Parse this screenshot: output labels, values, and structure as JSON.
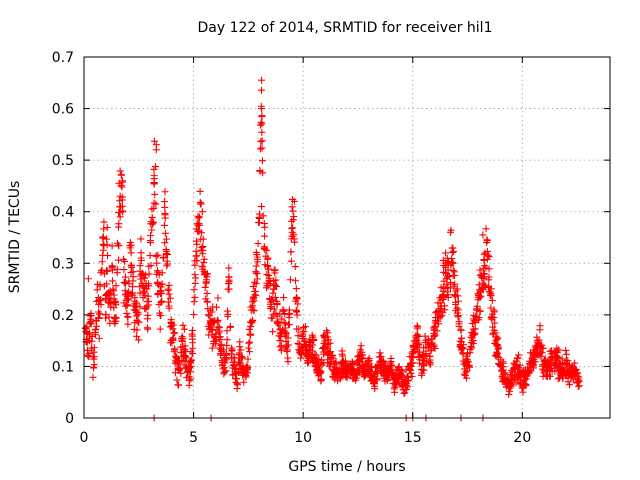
{
  "chart_data": {
    "type": "scatter",
    "title": "Day 122 of 2014, SRMTID for receiver hil1",
    "xlabel": "GPS time / hours",
    "ylabel": "SRMTID / TECUs",
    "xlim": [
      0,
      24
    ],
    "ylim": [
      0,
      0.7
    ],
    "x_ticks": [
      0,
      5,
      10,
      15,
      20
    ],
    "x_tick_labels": [
      "0",
      "5",
      "10",
      "15",
      "20"
    ],
    "y_ticks": [
      0,
      0.1,
      0.2,
      0.3,
      0.4,
      0.5,
      0.6,
      0.7
    ],
    "y_tick_labels": [
      "0",
      "0.1",
      "0.2",
      "0.3",
      "0.4",
      "0.5",
      "0.6",
      "0.7"
    ],
    "grid": true,
    "marker": "+",
    "color": "#ff0000",
    "series": [
      {
        "name": "SRMTID",
        "x": [
          0.05,
          0.1,
          0.2,
          0.3,
          0.4,
          0.5,
          0.6,
          0.7,
          0.8,
          0.9,
          1.0,
          1.05,
          1.1,
          1.2,
          1.3,
          1.4,
          1.5,
          1.6,
          1.7,
          1.75,
          1.8,
          1.9,
          2.0,
          2.1,
          2.2,
          2.3,
          2.4,
          2.5,
          2.6,
          2.7,
          2.8,
          2.9,
          3.0,
          3.1,
          3.2,
          3.25,
          3.3,
          3.4,
          3.5,
          3.6,
          3.7,
          3.8,
          3.9,
          4.0,
          4.1,
          4.2,
          4.3,
          4.4,
          4.5,
          4.6,
          4.7,
          4.8,
          4.9,
          5.0,
          5.1,
          5.2,
          5.3,
          5.4,
          5.5,
          5.6,
          5.7,
          5.8,
          5.9,
          6.0,
          6.1,
          6.2,
          6.3,
          6.4,
          6.5,
          6.6,
          6.7,
          6.8,
          6.9,
          7.0,
          7.1,
          7.2,
          7.3,
          7.4,
          7.5,
          7.6,
          7.7,
          7.8,
          7.9,
          8.0,
          8.05,
          8.1,
          8.2,
          8.3,
          8.4,
          8.5,
          8.6,
          8.7,
          8.8,
          8.9,
          9.0,
          9.1,
          9.2,
          9.3,
          9.4,
          9.5,
          9.6,
          9.7,
          9.8,
          9.9,
          10.0,
          10.2,
          10.4,
          10.6,
          10.8,
          11.0,
          11.2,
          11.4,
          11.6,
          11.8,
          12.0,
          12.2,
          12.4,
          12.6,
          12.8,
          13.0,
          13.2,
          13.4,
          13.6,
          13.8,
          14.0,
          14.2,
          14.4,
          14.6,
          14.8,
          15.0,
          15.2,
          15.4,
          15.6,
          15.8,
          16.0,
          16.2,
          16.4,
          16.6,
          16.8,
          17.0,
          17.2,
          17.4,
          17.6,
          17.8,
          18.0,
          18.2,
          18.4,
          18.6,
          18.8,
          19.0,
          19.2,
          19.4,
          19.6,
          19.8,
          20.0,
          20.2,
          20.4,
          20.6,
          20.8,
          21.0,
          21.2,
          21.4,
          21.6,
          21.8,
          22.0,
          22.2,
          22.4,
          22.6
        ],
        "y": [
          0.14,
          0.17,
          0.12,
          0.2,
          0.1,
          0.13,
          0.24,
          0.18,
          0.3,
          0.35,
          0.2,
          0.36,
          0.25,
          0.22,
          0.3,
          0.18,
          0.26,
          0.38,
          0.45,
          0.43,
          0.3,
          0.24,
          0.2,
          0.34,
          0.28,
          0.22,
          0.2,
          0.18,
          0.3,
          0.24,
          0.26,
          0.2,
          0.32,
          0.36,
          0.46,
          0.52,
          0.3,
          0.26,
          0.22,
          0.32,
          0.39,
          0.3,
          0.2,
          0.17,
          0.14,
          0.12,
          0.09,
          0.11,
          0.15,
          0.13,
          0.1,
          0.08,
          0.12,
          0.2,
          0.28,
          0.38,
          0.4,
          0.32,
          0.3,
          0.25,
          0.2,
          0.17,
          0.18,
          0.14,
          0.2,
          0.15,
          0.12,
          0.1,
          0.11,
          0.28,
          0.13,
          0.1,
          0.09,
          0.07,
          0.12,
          0.1,
          0.08,
          0.09,
          0.11,
          0.18,
          0.2,
          0.25,
          0.3,
          0.41,
          0.51,
          0.6,
          0.36,
          0.3,
          0.28,
          0.24,
          0.2,
          0.26,
          0.22,
          0.18,
          0.14,
          0.2,
          0.16,
          0.12,
          0.25,
          0.4,
          0.35,
          0.2,
          0.15,
          0.12,
          0.16,
          0.12,
          0.14,
          0.11,
          0.09,
          0.15,
          0.12,
          0.1,
          0.08,
          0.11,
          0.09,
          0.1,
          0.08,
          0.12,
          0.09,
          0.1,
          0.07,
          0.09,
          0.11,
          0.08,
          0.1,
          0.07,
          0.09,
          0.06,
          0.08,
          0.12,
          0.16,
          0.1,
          0.14,
          0.12,
          0.17,
          0.2,
          0.25,
          0.28,
          0.32,
          0.22,
          0.14,
          0.1,
          0.12,
          0.18,
          0.22,
          0.28,
          0.34,
          0.2,
          0.15,
          0.11,
          0.08,
          0.06,
          0.09,
          0.1,
          0.07,
          0.08,
          0.11,
          0.12,
          0.14,
          0.1,
          0.09,
          0.12,
          0.11,
          0.09,
          0.1,
          0.08,
          0.09,
          0.07
        ],
        "spread": [
          0.04,
          0.05,
          0.04,
          0.06,
          0.03,
          0.05,
          0.07,
          0.06,
          0.08,
          0.08,
          0.06,
          0.07,
          0.07,
          0.06,
          0.08,
          0.06,
          0.07,
          0.08,
          0.08,
          0.07,
          0.08,
          0.07,
          0.06,
          0.08,
          0.08,
          0.07,
          0.06,
          0.06,
          0.08,
          0.07,
          0.07,
          0.06,
          0.08,
          0.09,
          0.09,
          0.05,
          0.08,
          0.07,
          0.07,
          0.08,
          0.08,
          0.08,
          0.07,
          0.06,
          0.05,
          0.05,
          0.04,
          0.04,
          0.05,
          0.05,
          0.04,
          0.04,
          0.05,
          0.07,
          0.08,
          0.08,
          0.07,
          0.08,
          0.07,
          0.07,
          0.06,
          0.05,
          0.06,
          0.05,
          0.06,
          0.05,
          0.04,
          0.04,
          0.04,
          0.05,
          0.04,
          0.04,
          0.03,
          0.03,
          0.04,
          0.03,
          0.03,
          0.03,
          0.04,
          0.06,
          0.06,
          0.07,
          0.08,
          0.08,
          0.07,
          0.06,
          0.07,
          0.07,
          0.07,
          0.07,
          0.06,
          0.07,
          0.07,
          0.06,
          0.05,
          0.06,
          0.05,
          0.04,
          0.07,
          0.07,
          0.07,
          0.06,
          0.05,
          0.04,
          0.05,
          0.04,
          0.05,
          0.04,
          0.03,
          0.05,
          0.04,
          0.04,
          0.03,
          0.04,
          0.03,
          0.03,
          0.03,
          0.04,
          0.03,
          0.04,
          0.03,
          0.03,
          0.04,
          0.03,
          0.04,
          0.03,
          0.03,
          0.03,
          0.03,
          0.04,
          0.05,
          0.04,
          0.05,
          0.04,
          0.05,
          0.06,
          0.07,
          0.07,
          0.07,
          0.06,
          0.05,
          0.04,
          0.04,
          0.05,
          0.06,
          0.07,
          0.07,
          0.06,
          0.05,
          0.04,
          0.03,
          0.03,
          0.03,
          0.04,
          0.03,
          0.03,
          0.04,
          0.04,
          0.05,
          0.04,
          0.03,
          0.04,
          0.04,
          0.03,
          0.04,
          0.03,
          0.03,
          0.03
        ],
        "outliers": [
          {
            "x": 8.1,
            "y": 0.655
          },
          {
            "x": 8.1,
            "y": 0.6
          },
          {
            "x": 8.05,
            "y": 0.568
          },
          {
            "x": 3.3,
            "y": 0.53
          },
          {
            "x": 3.3,
            "y": 0.52
          },
          {
            "x": 3.2,
            "y": 0.47
          },
          {
            "x": 1.6,
            "y": 0.455
          },
          {
            "x": 1.65,
            "y": 0.43
          },
          {
            "x": 8.1,
            "y": 0.41
          },
          {
            "x": 9.6,
            "y": 0.42
          },
          {
            "x": 5.4,
            "y": 0.4
          },
          {
            "x": 18.2,
            "y": 0.355
          },
          {
            "x": 16.5,
            "y": 0.32
          },
          {
            "x": 18.3,
            "y": 0.32
          },
          {
            "x": 0.2,
            "y": 0.27
          },
          {
            "x": 3.2,
            "y": 0.0
          },
          {
            "x": 5.8,
            "y": 0.0
          },
          {
            "x": 14.7,
            "y": 0.0
          },
          {
            "x": 15.0,
            "y": 0.0
          },
          {
            "x": 15.6,
            "y": 0.0
          },
          {
            "x": 17.2,
            "y": 0.0
          },
          {
            "x": 18.2,
            "y": 0.0
          }
        ]
      }
    ]
  }
}
